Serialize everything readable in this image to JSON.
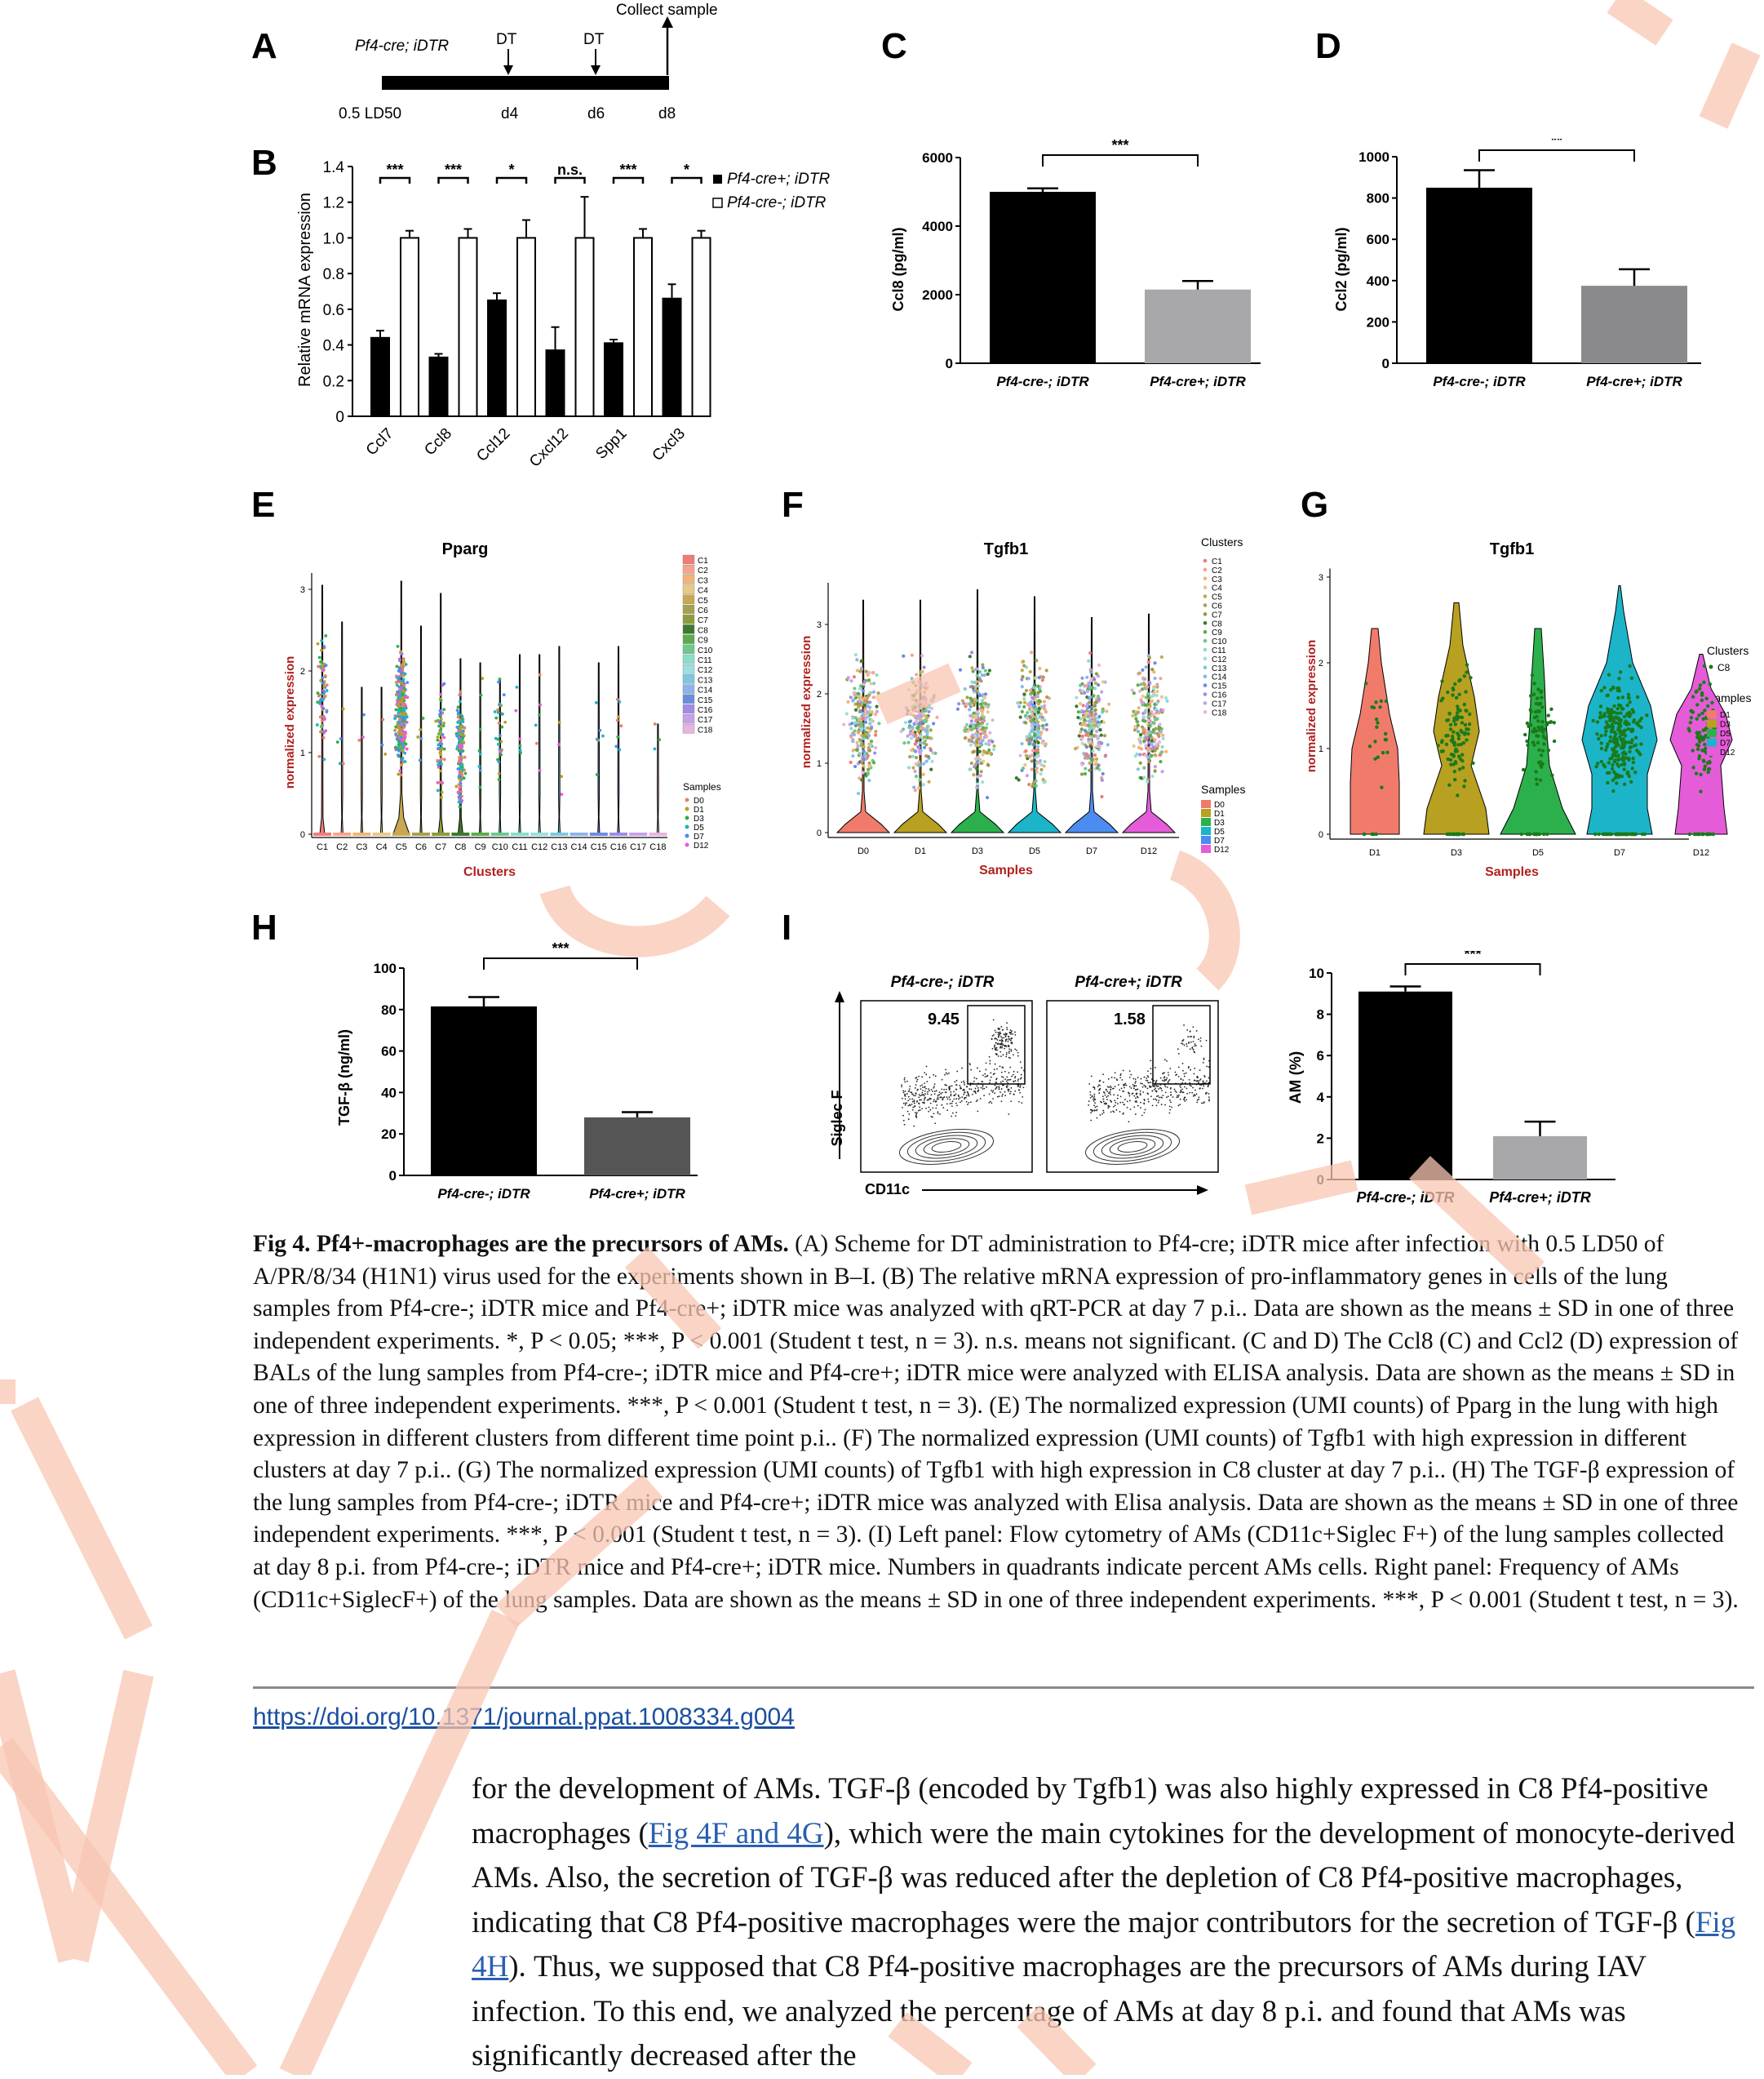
{
  "figure": {
    "panel_letters": [
      "A",
      "B",
      "C",
      "D",
      "E",
      "F",
      "G",
      "H",
      "I"
    ],
    "panelA": {
      "strain": "Pf4-cre; iDTR",
      "dose": "0.5 LD50",
      "events": [
        {
          "label": "DT",
          "day": "d4"
        },
        {
          "label": "DT",
          "day": "d6"
        }
      ],
      "end_label": "Collect sample",
      "end_day": "d8"
    },
    "panelB": {
      "ylabel": "Relative mRNA expression",
      "yticks": [
        "0",
        "0.2",
        "0.4",
        "0.6",
        "0.8",
        "1.0",
        "1.2",
        "1.4"
      ],
      "legend": [
        "Pf4-cre+; iDTR",
        "Pf4-cre-; iDTR"
      ]
    },
    "panelC": {
      "ylabel": "Ccl8 (pg/ml)",
      "yticks": [
        "0",
        "2000",
        "4000",
        "6000"
      ],
      "sig": "***"
    },
    "panelD": {
      "ylabel": "Ccl2 (pg/ml)",
      "yticks": [
        "0",
        "200",
        "400",
        "600",
        "800",
        "1000"
      ],
      "sig": "**"
    },
    "panelE": {
      "title": "Pparg",
      "ylabel": "normalized expression",
      "xlabel": "Clusters",
      "yticks": [
        "0",
        "1",
        "2",
        "3"
      ],
      "clusters": [
        "C1",
        "C2",
        "C3",
        "C4",
        "C5",
        "C6",
        "C7",
        "C8",
        "C9",
        "C10",
        "C11",
        "C12",
        "C13",
        "C14",
        "C15",
        "C16",
        "C17",
        "C18"
      ],
      "cluster_colors": [
        "#f07b7b",
        "#f5a58c",
        "#f0b47a",
        "#e8c88a",
        "#c8a850",
        "#a8a050",
        "#8c9c3c",
        "#3c7a2c",
        "#5cac4c",
        "#6cc88c",
        "#8cdcc8",
        "#9ce0dc",
        "#7cc8e0",
        "#8cb4ec",
        "#6c8ce0",
        "#a08ce8",
        "#c8a0e8",
        "#e8b4e0"
      ],
      "samples_title": "Samples",
      "samples": [
        "D0",
        "D1",
        "D3",
        "D5",
        "D7",
        "D12"
      ],
      "sample_colors": [
        "#f07b6b",
        "#b8a020",
        "#2cb04c",
        "#1cb4c8",
        "#4c8cf0",
        "#e45cd8"
      ]
    },
    "panelF": {
      "title": "Tgfb1",
      "ylabel": "normalized expression",
      "xlabel": "Samples",
      "yticks": [
        "0",
        "1",
        "2",
        "3"
      ],
      "clusters_title": "Clusters",
      "samples_title": "Samples"
    },
    "panelG": {
      "title": "Tgfb1",
      "ylabel": "normalized expression",
      "xlabel": "Samples",
      "yticks": [
        "0",
        "1",
        "2",
        "3"
      ],
      "clusters_title": "Clusters",
      "cluster": "C8",
      "samples_title": "Samples",
      "samples": [
        "D1",
        "D3",
        "D5",
        "D7",
        "D12"
      ],
      "sample_colors": [
        "#f07b6b",
        "#b8a020",
        "#2cb04c",
        "#1cb4c8",
        "#e45cd8"
      ]
    },
    "panelH": {
      "ylabel": "TGF-β (ng/ml)",
      "yticks": [
        "0",
        "20",
        "40",
        "60",
        "80",
        "100"
      ],
      "sig": "***"
    },
    "panelI": {
      "flow_left_title": "Pf4-cre-; iDTR",
      "flow_right_title": "Pf4-cre+; iDTR",
      "gate_left": "9.45",
      "gate_right": "1.58",
      "flow_ylabel": "Siglec F",
      "flow_xlabel": "CD11c",
      "ylabel": "AM (%)",
      "yticks": [
        "0",
        "2",
        "4",
        "6",
        "8",
        "10"
      ],
      "sig": "***"
    },
    "group_labels": {
      "neg": "Pf4-cre-; iDTR",
      "pos": "Pf4-cre+; iDTR"
    }
  },
  "chart_data": [
    {
      "type": "bar",
      "panel": "B",
      "categories": [
        "Ccl7",
        "Ccl8",
        "Ccl12",
        "Cxcl12",
        "Spp1",
        "Cxcl3"
      ],
      "significance": [
        "***",
        "***",
        "*",
        "n.s.",
        "***",
        "*"
      ],
      "ylabel": "Relative mRNA expression",
      "ylim": [
        0,
        1.4
      ],
      "series": [
        {
          "name": "Pf4-cre+; iDTR",
          "color": "#000000",
          "values": [
            0.44,
            0.33,
            0.65,
            0.37,
            0.41,
            0.66
          ],
          "sd": [
            0.04,
            0.02,
            0.04,
            0.13,
            0.02,
            0.08
          ]
        },
        {
          "name": "Pf4-cre-; iDTR",
          "color": "#ffffff",
          "values": [
            1.0,
            1.0,
            1.0,
            1.0,
            1.0,
            1.0
          ],
          "sd": [
            0.04,
            0.05,
            0.1,
            0.23,
            0.05,
            0.04
          ]
        }
      ]
    },
    {
      "type": "bar",
      "panel": "C",
      "categories": [
        "Pf4-cre-; iDTR",
        "Pf4-cre+; iDTR"
      ],
      "values": [
        5000,
        2150
      ],
      "sd": [
        100,
        250
      ],
      "colors": [
        "#000000",
        "#a8a8aa"
      ],
      "ylabel": "Ccl8 (pg/ml)",
      "ylim": [
        0,
        6000
      ],
      "significance": "***"
    },
    {
      "type": "bar",
      "panel": "D",
      "categories": [
        "Pf4-cre-; iDTR",
        "Pf4-cre+; iDTR"
      ],
      "values": [
        850,
        375
      ],
      "sd": [
        85,
        80
      ],
      "colors": [
        "#000000",
        "#8a8a8c"
      ],
      "ylabel": "Ccl2 (pg/ml)",
      "ylim": [
        0,
        1000
      ],
      "significance": "**"
    },
    {
      "type": "bar",
      "panel": "H",
      "categories": [
        "Pf4-cre-; iDTR",
        "Pf4-cre+; iDTR"
      ],
      "values": [
        81.5,
        28
      ],
      "sd": [
        4.5,
        2.5
      ],
      "colors": [
        "#000000",
        "#555555"
      ],
      "ylabel": "TGF-β (ng/ml)",
      "ylim": [
        0,
        100
      ],
      "significance": "***"
    },
    {
      "type": "bar",
      "panel": "I",
      "categories": [
        "Pf4-cre-; iDTR",
        "Pf4-cre+; iDTR"
      ],
      "values": [
        9.1,
        2.1
      ],
      "sd": [
        0.25,
        0.7
      ],
      "colors": [
        "#000000",
        "#a8a8aa"
      ],
      "ylabel": "AM (%)",
      "ylim": [
        0,
        10
      ],
      "significance": "***"
    }
  ],
  "caption": {
    "fig_label": "Fig 4.",
    "title": "Pf4+-macrophages are the precursors of AMs.",
    "text": "(A) Scheme for DT administration to Pf4-cre; iDTR mice after infection with 0.5 LD50 of A/PR/8/34 (H1N1) virus used for the experiments shown in B–I. (B) The relative mRNA expression of pro-inflammatory genes in cells of the lung samples from Pf4-cre-; iDTR mice and Pf4-cre+; iDTR mice was analyzed with qRT-PCR at day 7 p.i.. Data are shown as the means ± SD in one of three independent experiments. *, P < 0.05; ***, P < 0.001 (Student t test, n = 3). n.s. means not significant. (C and D) The Ccl8 (C) and Ccl2 (D) expression of BALs of the lung samples from Pf4-cre-; iDTR mice and Pf4-cre+; iDTR mice were analyzed with ELISA analysis. Data are shown as the means ± SD in one of three independent experiments. ***, P < 0.001 (Student t test, n = 3). (E) The normalized expression (UMI counts) of Pparg in the lung with high expression in different clusters from different time point p.i.. (F) The normalized expression (UMI counts) of Tgfb1 with high expression in different clusters at day 7 p.i.. (G) The normalized expression (UMI counts) of Tgfb1 with high expression in C8 cluster at day 7 p.i.. (H) The TGF-β expression of the lung samples from Pf4-cre-; iDTR mice and Pf4-cre+; iDTR mice was analyzed with Elisa analysis. Data are shown as the means ± SD in one of three independent experiments. ***, P < 0.001 (Student t test, n = 3). (I) Left panel: Flow cytometry of AMs (CD11c+Siglec F+) of the lung samples collected at day 8 p.i. from Pf4-cre-; iDTR mice and Pf4-cre+; iDTR mice. Numbers in quadrants indicate percent AMs cells. Right panel: Frequency of AMs (CD11c+SiglecF+) of the lung samples. Data are shown as the means ± SD in one of three independent experiments. ***, P < 0.001 (Student t test, n = 3)."
  },
  "doi_link": "https://doi.org/10.1371/journal.ppat.1008334.g004",
  "body": {
    "p1": "for the development of AMs. TGF-β (encoded by Tgfb1) was also highly expressed in C8 Pf4-positive macrophages (",
    "link1": "Fig 4F and 4G",
    "p2": "), which were the main cytokines for the development of monocyte-derived AMs. Also, the secretion of TGF-β was reduced after the depletion of C8 Pf4-positive macrophages, indicating that C8 Pf4-positive macrophages were the major contributors for the secretion of TGF-β (",
    "link2": "Fig 4H",
    "p3": "). Thus, we supposed that C8 Pf4-positive macrophages are the precursors of AMs during IAV infection. To this end, we analyzed the percentage of AMs at day 8 p.i. and found that AMs was significantly decreased after the"
  },
  "watermark": {
    "color": "#f8c6b2"
  }
}
